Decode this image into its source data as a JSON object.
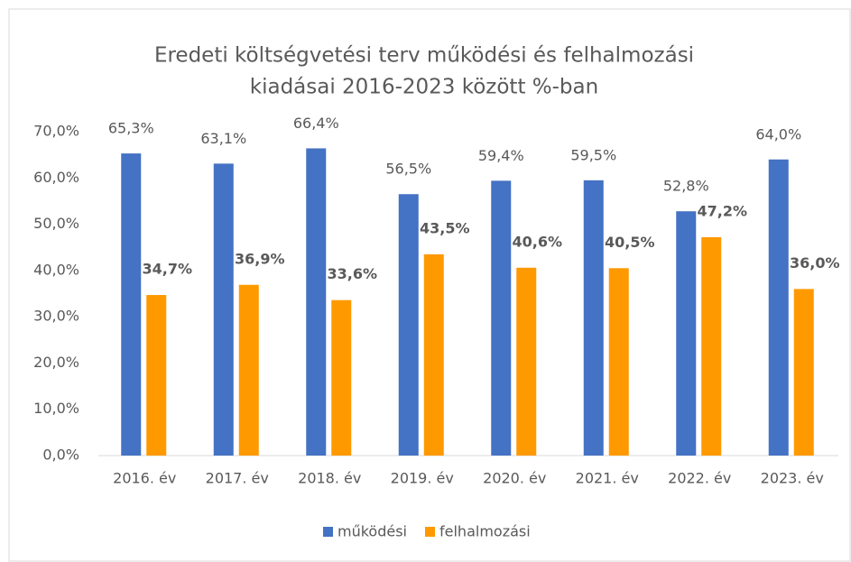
{
  "chart_data": {
    "type": "bar",
    "title": [
      "Eredeti költségvetési terv működési és felhalmozási",
      "kiadásai 2016-2023  között %-ban"
    ],
    "categories": [
      "2016. év",
      "2017. év",
      "2018. év",
      "2019. év",
      "2020. év",
      "2021. év",
      "2022. év",
      "2023. év"
    ],
    "series": [
      {
        "name": "működési",
        "color": "#4472c4",
        "values": [
          65.3,
          63.1,
          66.4,
          56.5,
          59.4,
          59.5,
          52.8,
          64.0
        ],
        "value_labels": [
          "65,3%",
          "63,1%",
          "66,4%",
          "56,5%",
          "59,4%",
          "59,5%",
          "52,8%",
          "64,0%"
        ]
      },
      {
        "name": "felhalmozási",
        "color": "#ff9900",
        "values": [
          34.7,
          36.9,
          33.6,
          43.5,
          40.6,
          40.5,
          47.2,
          36.0
        ],
        "value_labels": [
          "34,7%",
          "36,9%",
          "33,6%",
          "43,5%",
          "40,6%",
          "40,5%",
          "47,2%",
          "36,0%"
        ]
      }
    ],
    "ylim": [
      0,
      70
    ],
    "yticks": [
      {
        "value": 0,
        "label": "0,0%"
      },
      {
        "value": 10,
        "label": "10,0%"
      },
      {
        "value": 20,
        "label": "20,0%"
      },
      {
        "value": 30,
        "label": "30,0%"
      },
      {
        "value": 40,
        "label": "40,0%"
      },
      {
        "value": 50,
        "label": "50,0%"
      },
      {
        "value": 60,
        "label": "60,0%"
      },
      {
        "value": 70,
        "label": "70,0%"
      }
    ],
    "grid": false,
    "legend": "bottom"
  }
}
